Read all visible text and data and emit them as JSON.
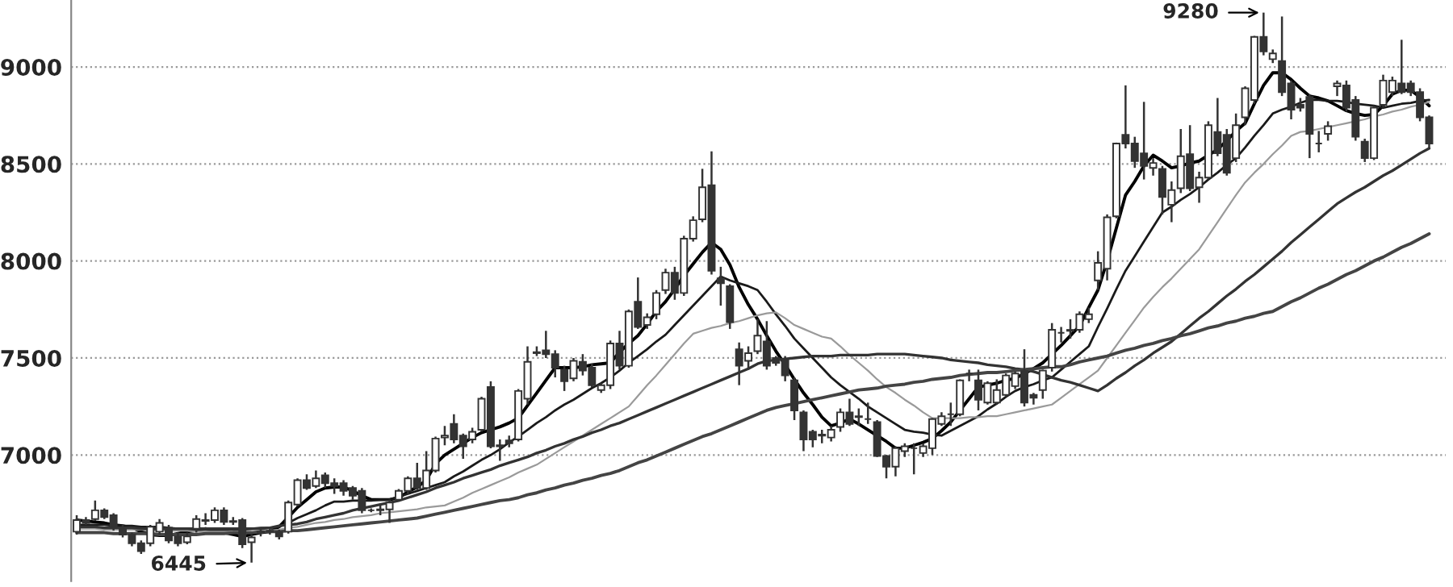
{
  "chart_data": {
    "type": "candlestick",
    "categories": [
      null,
      null,
      null,
      null,
      null,
      null,
      null,
      null,
      null,
      null,
      null,
      null,
      null,
      null,
      null,
      null,
      null,
      null,
      null,
      null,
      null,
      null,
      null,
      null,
      null,
      null,
      null,
      null,
      null,
      null,
      null,
      null,
      null,
      null,
      null,
      null,
      null,
      null,
      null,
      null,
      null,
      null,
      null,
      null,
      null,
      null,
      null,
      null,
      null,
      null,
      null,
      null,
      null,
      null,
      null,
      null,
      null,
      null,
      null,
      null,
      null,
      null,
      null,
      null,
      null,
      null,
      null,
      null,
      null,
      null,
      null,
      null,
      null,
      null,
      null,
      null,
      null,
      null,
      null,
      null,
      null,
      null,
      null,
      null,
      null,
      null,
      null,
      null,
      null,
      null,
      null,
      null,
      null,
      null,
      null,
      null,
      null,
      null,
      null,
      null,
      null,
      null,
      null,
      null,
      null,
      null,
      null,
      null,
      null,
      null,
      null,
      null,
      null,
      null,
      null,
      null,
      null,
      null,
      null,
      null,
      null,
      null,
      null,
      null,
      null,
      null,
      null,
      null,
      null,
      null,
      null,
      null,
      null,
      null,
      null,
      null,
      null,
      null,
      null,
      null,
      null,
      null,
      null,
      null,
      null,
      null,
      null,
      null
    ],
    "ohlc": [
      [
        6605,
        6690,
        6590,
        6665
      ],
      [
        6665,
        6680,
        6640,
        6650
      ],
      [
        6670,
        6765,
        6660,
        6715
      ],
      [
        6715,
        6725,
        6670,
        6680
      ],
      [
        6690,
        6700,
        6610,
        6625
      ],
      [
        6625,
        6640,
        6575,
        6590
      ],
      [
        6590,
        6600,
        6530,
        6545
      ],
      [
        6545,
        6560,
        6490,
        6505
      ],
      [
        6545,
        6640,
        6530,
        6630
      ],
      [
        6605,
        6670,
        6590,
        6650
      ],
      [
        6625,
        6640,
        6545,
        6560
      ],
      [
        6580,
        6600,
        6530,
        6545
      ],
      [
        6550,
        6600,
        6540,
        6580
      ],
      [
        6620,
        6690,
        6600,
        6670
      ],
      [
        6660,
        6700,
        6640,
        6665
      ],
      [
        6665,
        6730,
        6650,
        6715
      ],
      [
        6715,
        6730,
        6640,
        6655
      ],
      [
        6660,
        6680,
        6640,
        6655
      ],
      [
        6665,
        6675,
        6520,
        6540
      ],
      [
        6550,
        6590,
        6445,
        6575
      ],
      [
        6600,
        6620,
        6580,
        6605
      ],
      [
        6605,
        6625,
        6590,
        6610
      ],
      [
        6605,
        6615,
        6565,
        6580
      ],
      [
        6605,
        6765,
        6595,
        6755
      ],
      [
        6745,
        6880,
        6735,
        6870
      ],
      [
        6870,
        6900,
        6820,
        6830
      ],
      [
        6840,
        6920,
        6830,
        6880
      ],
      [
        6895,
        6910,
        6830,
        6855
      ],
      [
        6855,
        6880,
        6800,
        6840
      ],
      [
        6855,
        6870,
        6790,
        6815
      ],
      [
        6830,
        6840,
        6770,
        6790
      ],
      [
        6815,
        6830,
        6700,
        6715
      ],
      [
        6715,
        6725,
        6705,
        6715
      ],
      [
        6715,
        6740,
        6690,
        6720
      ],
      [
        6720,
        6770,
        6650,
        6755
      ],
      [
        6770,
        6825,
        6760,
        6815
      ],
      [
        6815,
        6890,
        6800,
        6880
      ],
      [
        6880,
        6960,
        6820,
        6830
      ],
      [
        6830,
        7020,
        6820,
        6920
      ],
      [
        6920,
        7095,
        6910,
        7085
      ],
      [
        7090,
        7150,
        7050,
        7100
      ],
      [
        7160,
        7210,
        7060,
        7080
      ],
      [
        7100,
        7110,
        6980,
        7045
      ],
      [
        7080,
        7140,
        7060,
        7120
      ],
      [
        7130,
        7300,
        7120,
        7290
      ],
      [
        7350,
        7380,
        7035,
        7045
      ],
      [
        7050,
        7080,
        6970,
        7045
      ],
      [
        7075,
        7100,
        7040,
        7060
      ],
      [
        7080,
        7340,
        7070,
        7330
      ],
      [
        7290,
        7560,
        7260,
        7480
      ],
      [
        7525,
        7560,
        7510,
        7530
      ],
      [
        7540,
        7640,
        7500,
        7520
      ],
      [
        7520,
        7540,
        7400,
        7450
      ],
      [
        7440,
        7460,
        7330,
        7380
      ],
      [
        7395,
        7500,
        7380,
        7485
      ],
      [
        7480,
        7520,
        7410,
        7435
      ],
      [
        7450,
        7470,
        7350,
        7360
      ],
      [
        7335,
        7370,
        7320,
        7360
      ],
      [
        7360,
        7590,
        7340,
        7575
      ],
      [
        7575,
        7640,
        7440,
        7460
      ],
      [
        7460,
        7750,
        7450,
        7740
      ],
      [
        7790,
        7915,
        7650,
        7660
      ],
      [
        7670,
        7730,
        7650,
        7710
      ],
      [
        7725,
        7850,
        7700,
        7835
      ],
      [
        7850,
        7960,
        7830,
        7940
      ],
      [
        7940,
        7970,
        7800,
        7835
      ],
      [
        7835,
        8130,
        7820,
        8115
      ],
      [
        8115,
        8230,
        8100,
        8210
      ],
      [
        8215,
        8475,
        8200,
        8380
      ],
      [
        8390,
        8565,
        7930,
        7950
      ],
      [
        7910,
        7970,
        7770,
        7885
      ],
      [
        7870,
        7880,
        7650,
        7685
      ],
      [
        7545,
        7580,
        7360,
        7460
      ],
      [
        7485,
        7560,
        7440,
        7525
      ],
      [
        7535,
        7700,
        7520,
        7615
      ],
      [
        7585,
        7690,
        7440,
        7460
      ],
      [
        7500,
        7510,
        7460,
        7475
      ],
      [
        7495,
        7510,
        7380,
        7410
      ],
      [
        7385,
        7400,
        7180,
        7230
      ],
      [
        7220,
        7230,
        7020,
        7080
      ],
      [
        7120,
        7130,
        7040,
        7080
      ],
      [
        7100,
        7130,
        7060,
        7105
      ],
      [
        7090,
        7150,
        7070,
        7130
      ],
      [
        7145,
        7240,
        7120,
        7220
      ],
      [
        7220,
        7290,
        7150,
        7160
      ],
      [
        7195,
        7240,
        7150,
        7200
      ],
      [
        7185,
        7270,
        7160,
        7185
      ],
      [
        7170,
        7180,
        6990,
        6995
      ],
      [
        6995,
        7000,
        6880,
        6940
      ],
      [
        6940,
        7045,
        6890,
        7035
      ],
      [
        7020,
        7060,
        6990,
        7045
      ],
      [
        7035,
        7060,
        6900,
        7035
      ],
      [
        7010,
        7060,
        6990,
        7045
      ],
      [
        7035,
        7190,
        7000,
        7185
      ],
      [
        7160,
        7220,
        7150,
        7200
      ],
      [
        7210,
        7270,
        7150,
        7210
      ],
      [
        7210,
        7390,
        7200,
        7385
      ],
      [
        7420,
        7440,
        7380,
        7420
      ],
      [
        7385,
        7440,
        7230,
        7285
      ],
      [
        7270,
        7380,
        7260,
        7370
      ],
      [
        7270,
        7390,
        7260,
        7335
      ],
      [
        7310,
        7420,
        7300,
        7410
      ],
      [
        7355,
        7430,
        7340,
        7420
      ],
      [
        7435,
        7545,
        7250,
        7270
      ],
      [
        7310,
        7320,
        7260,
        7295
      ],
      [
        7335,
        7440,
        7290,
        7435
      ],
      [
        7450,
        7680,
        7430,
        7645
      ],
      [
        7630,
        7660,
        7580,
        7630
      ],
      [
        7640,
        7700,
        7600,
        7645
      ],
      [
        7645,
        7740,
        7630,
        7725
      ],
      [
        7700,
        7760,
        7680,
        7725
      ],
      [
        7900,
        8050,
        7850,
        7990
      ],
      [
        7960,
        8240,
        7900,
        8225
      ],
      [
        8230,
        8610,
        8220,
        8605
      ],
      [
        8650,
        8905,
        8580,
        8605
      ],
      [
        8605,
        8640,
        8480,
        8515
      ],
      [
        8555,
        8820,
        8420,
        8490
      ],
      [
        8480,
        8530,
        8440,
        8505
      ],
      [
        8475,
        8490,
        8240,
        8330
      ],
      [
        8290,
        8410,
        8200,
        8365
      ],
      [
        8375,
        8680,
        8350,
        8540
      ],
      [
        8550,
        8700,
        8360,
        8375
      ],
      [
        8380,
        8460,
        8300,
        8430
      ],
      [
        8430,
        8720,
        8420,
        8700
      ],
      [
        8665,
        8840,
        8540,
        8555
      ],
      [
        8650,
        8680,
        8440,
        8455
      ],
      [
        8530,
        8760,
        8510,
        8700
      ],
      [
        8740,
        8900,
        8700,
        8890
      ],
      [
        8830,
        9160,
        8810,
        9155
      ],
      [
        9155,
        9280,
        9060,
        9080
      ],
      [
        9040,
        9090,
        9020,
        9070
      ],
      [
        9030,
        9260,
        8850,
        8870
      ],
      [
        8915,
        8930,
        8730,
        8780
      ],
      [
        8805,
        8840,
        8770,
        8790
      ],
      [
        8845,
        8860,
        8530,
        8655
      ],
      [
        8605,
        8670,
        8560,
        8605
      ],
      [
        8655,
        8720,
        8620,
        8695
      ],
      [
        8900,
        8930,
        8850,
        8915
      ],
      [
        8905,
        8930,
        8770,
        8790
      ],
      [
        8830,
        8850,
        8620,
        8640
      ],
      [
        8615,
        8630,
        8510,
        8530
      ],
      [
        8530,
        8800,
        8520,
        8790
      ],
      [
        8805,
        8960,
        8790,
        8930
      ],
      [
        8870,
        8950,
        8850,
        8930
      ],
      [
        8915,
        9140,
        8860,
        8870
      ],
      [
        8915,
        8930,
        8850,
        8870
      ],
      [
        8870,
        8890,
        8720,
        8740
      ],
      [
        8740,
        8750,
        8580,
        8605
      ]
    ],
    "colors": [
      "#ffffff",
      "#333333",
      "#ffffff",
      "#333333",
      "#333333",
      "#333333",
      "#333333",
      "#333333",
      "#ffffff",
      "#ffffff",
      "#333333",
      "#333333",
      "#ffffff",
      "#ffffff",
      "#ffffff",
      "#ffffff",
      "#333333",
      "#333333",
      "#333333",
      "#ffffff",
      "#ffffff",
      "#ffffff",
      "#333333",
      "#ffffff",
      "#ffffff",
      "#333333",
      "#ffffff",
      "#333333",
      "#333333",
      "#333333",
      "#333333",
      "#333333",
      "#333333",
      "#ffffff",
      "#ffffff",
      "#ffffff",
      "#ffffff",
      "#333333",
      "#ffffff",
      "#ffffff",
      "#ffffff",
      "#333333",
      "#333333",
      "#ffffff",
      "#ffffff",
      "#333333",
      "#333333",
      "#333333",
      "#ffffff",
      "#ffffff",
      "#ffffff",
      "#333333",
      "#333333",
      "#333333",
      "#ffffff",
      "#333333",
      "#333333",
      "#ffffff",
      "#ffffff",
      "#333333",
      "#ffffff",
      "#333333",
      "#ffffff",
      "#ffffff",
      "#ffffff",
      "#333333",
      "#ffffff",
      "#ffffff",
      "#ffffff",
      "#333333",
      "#333333",
      "#333333",
      "#333333",
      "#ffffff",
      "#ffffff",
      "#333333",
      "#333333",
      "#333333",
      "#333333",
      "#333333",
      "#333333",
      "#ffffff",
      "#ffffff",
      "#ffffff",
      "#333333",
      "#ffffff",
      "#333333",
      "#333333",
      "#333333",
      "#ffffff",
      "#ffffff",
      "#333333",
      "#ffffff",
      "#ffffff",
      "#ffffff",
      "#333333",
      "#ffffff",
      "#333333",
      "#333333",
      "#ffffff",
      "#ffffff",
      "#ffffff",
      "#ffffff",
      "#333333",
      "#333333",
      "#ffffff",
      "#ffffff",
      "#333333",
      "#ffffff",
      "#ffffff",
      "#ffffff",
      "#ffffff",
      "#ffffff",
      "#ffffff",
      "#333333",
      "#333333",
      "#333333",
      "#ffffff",
      "#333333",
      "#ffffff",
      "#ffffff",
      "#333333",
      "#ffffff",
      "#ffffff",
      "#333333",
      "#333333",
      "#ffffff",
      "#ffffff",
      "#ffffff",
      "#333333",
      "#ffffff",
      "#333333",
      "#333333",
      "#333333",
      "#333333",
      "#333333",
      "#ffffff",
      "#ffffff",
      "#333333",
      "#333333",
      "#333333",
      "#ffffff",
      "#ffffff",
      "#ffffff",
      "#333333",
      "#333333",
      "#333333",
      "#333333"
    ],
    "series": [
      {
        "type": "line",
        "color": "#000000",
        "values": [
          6665,
          6660,
          6655,
          6650,
          6640,
          6635,
          6625,
          6605,
          6590,
          6585,
          6585,
          6595,
          6605,
          6610,
          6620,
          6610,
          6600,
          6590,
          6580,
          6590,
          6600,
          6605,
          6630,
          6680,
          6730,
          6770,
          6810,
          6830,
          6835,
          6835,
          6815,
          6790,
          6770,
          6770,
          6770,
          6780,
          6810,
          6835,
          6870,
          6955,
          7000,
          7030,
          7060,
          7090,
          7115,
          7130,
          7145,
          7165,
          7190,
          7255,
          7320,
          7385,
          7450,
          7450,
          7450,
          7455,
          7465,
          7470,
          7475,
          7530,
          7575,
          7615,
          7675,
          7740,
          7790,
          7855,
          7925,
          7985,
          8045,
          8095,
          8060,
          7980,
          7865,
          7775,
          7700,
          7615,
          7535,
          7465,
          7390,
          7320,
          7260,
          7195,
          7150,
          7165,
          7185,
          7160,
          7130,
          7100,
          7070,
          7035,
          7035,
          7050,
          7065,
          7085,
          7125,
          7170,
          7230,
          7290,
          7350,
          7360,
          7370,
          7385,
          7395,
          7420,
          7445,
          7475,
          7520,
          7565,
          7615,
          7665,
          7760,
          7850,
          8000,
          8170,
          8340,
          8410,
          8490,
          8545,
          8515,
          8480,
          8490,
          8505,
          8515,
          8545,
          8575,
          8620,
          8670,
          8710,
          8810,
          8905,
          8970,
          8970,
          8935,
          8890,
          8850,
          8840,
          8825,
          8800,
          8775,
          8760,
          8750,
          8755,
          8800,
          8860,
          8880,
          8880,
          8845,
          8800
        ]
      },
      {
        "type": "line",
        "color": "#1a1a1a",
        "values": [
          6640,
          6640,
          6640,
          6640,
          6635,
          6635,
          6635,
          6630,
          6630,
          6630,
          6625,
          6620,
          6620,
          6615,
          6615,
          6610,
          6610,
          6615,
          6615,
          6620,
          6625,
          6625,
          6630,
          6650,
          6675,
          6695,
          6715,
          6740,
          6760,
          6760,
          6765,
          6765,
          6765,
          6770,
          6770,
          6785,
          6800,
          6815,
          6830,
          6845,
          6860,
          6890,
          6915,
          6945,
          6975,
          7000,
          7030,
          7065,
          7095,
          7130,
          7165,
          7195,
          7230,
          7260,
          7285,
          7315,
          7345,
          7370,
          7400,
          7435,
          7475,
          7510,
          7545,
          7585,
          7620,
          7670,
          7720,
          7770,
          7820,
          7870,
          7920,
          7900,
          7885,
          7870,
          7850,
          7790,
          7725,
          7665,
          7600,
          7550,
          7500,
          7450,
          7400,
          7360,
          7325,
          7290,
          7250,
          7220,
          7190,
          7160,
          7130,
          7120,
          7115,
          7105,
          7100,
          7125,
          7150,
          7175,
          7200,
          7235,
          7265,
          7300,
          7330,
          7350,
          7365,
          7385,
          7400,
          7440,
          7480,
          7520,
          7560,
          7660,
          7755,
          7855,
          7950,
          8025,
          8100,
          8175,
          8250,
          8280,
          8315,
          8345,
          8380,
          8420,
          8455,
          8495,
          8530,
          8585,
          8645,
          8700,
          8760,
          8780,
          8795,
          8815,
          8830,
          8830,
          8825,
          8825,
          8820,
          8810,
          8805,
          8800,
          8790,
          8800,
          8810,
          8815,
          8825,
          8830
        ]
      },
      {
        "type": "line",
        "color": "#9a9a9a",
        "values": [
          6620,
          6620,
          6620,
          6615,
          6615,
          6615,
          6615,
          6615,
          6610,
          6610,
          6610,
          6610,
          6610,
          6605,
          6605,
          6605,
          6605,
          6605,
          6600,
          6600,
          6600,
          6610,
          6615,
          6625,
          6630,
          6640,
          6650,
          6655,
          6665,
          6670,
          6680,
          6685,
          6690,
          6700,
          6705,
          6710,
          6715,
          6720,
          6730,
          6735,
          6740,
          6760,
          6780,
          6805,
          6825,
          6845,
          6865,
          6885,
          6910,
          6930,
          6950,
          6980,
          7010,
          7040,
          7070,
          7100,
          7130,
          7160,
          7190,
          7220,
          7250,
          7305,
          7360,
          7410,
          7465,
          7520,
          7575,
          7625,
          7640,
          7655,
          7665,
          7680,
          7690,
          7705,
          7720,
          7730,
          7735,
          7705,
          7670,
          7650,
          7630,
          7610,
          7600,
          7560,
          7515,
          7475,
          7435,
          7390,
          7350,
          7320,
          7285,
          7255,
          7220,
          7190,
          7190,
          7190,
          7190,
          7195,
          7195,
          7200,
          7200,
          7210,
          7220,
          7230,
          7240,
          7250,
          7260,
          7295,
          7330,
          7365,
          7400,
          7435,
          7500,
          7565,
          7630,
          7695,
          7760,
          7815,
          7865,
          7910,
          7960,
          8010,
          8060,
          8130,
          8200,
          8270,
          8340,
          8405,
          8455,
          8500,
          8550,
          8595,
          8645,
          8665,
          8670,
          8680,
          8690,
          8700,
          8710,
          8720,
          8730,
          8745,
          8755,
          8770,
          8780,
          8795,
          8805,
          8820
        ]
      },
      {
        "type": "line",
        "color": "#333333",
        "values": [
          6630,
          6630,
          6630,
          6625,
          6625,
          6625,
          6625,
          6620,
          6620,
          6620,
          6620,
          6620,
          6620,
          6620,
          6620,
          6620,
          6620,
          6620,
          6620,
          6620,
          6620,
          6625,
          6635,
          6640,
          6645,
          6655,
          6670,
          6680,
          6690,
          6700,
          6715,
          6725,
          6735,
          6745,
          6755,
          6765,
          6780,
          6795,
          6810,
          6830,
          6845,
          6860,
          6880,
          6895,
          6910,
          6925,
          6945,
          6960,
          6975,
          6990,
          7010,
          7025,
          7045,
          7060,
          7080,
          7095,
          7115,
          7130,
          7150,
          7165,
          7185,
          7205,
          7225,
          7245,
          7265,
          7285,
          7305,
          7325,
          7345,
          7365,
          7385,
          7405,
          7425,
          7445,
          7470,
          7485,
          7490,
          7495,
          7500,
          7505,
          7510,
          7510,
          7510,
          7515,
          7515,
          7515,
          7515,
          7520,
          7520,
          7520,
          7520,
          7515,
          7510,
          7505,
          7500,
          7490,
          7485,
          7480,
          7475,
          7465,
          7460,
          7455,
          7445,
          7440,
          7430,
          7415,
          7400,
          7385,
          7375,
          7360,
          7345,
          7330,
          7360,
          7395,
          7425,
          7460,
          7490,
          7525,
          7555,
          7585,
          7625,
          7665,
          7705,
          7740,
          7780,
          7820,
          7855,
          7895,
          7930,
          7970,
          8010,
          8050,
          8095,
          8135,
          8175,
          8215,
          8255,
          8295,
          8325,
          8355,
          8380,
          8410,
          8440,
          8465,
          8495,
          8525,
          8555,
          8580
        ]
      },
      {
        "type": "line",
        "color": "#444444",
        "values": [
          6600,
          6600,
          6600,
          6600,
          6595,
          6595,
          6595,
          6595,
          6595,
          6590,
          6590,
          6590,
          6590,
          6590,
          6595,
          6595,
          6595,
          6600,
          6600,
          6600,
          6605,
          6605,
          6605,
          6610,
          6610,
          6615,
          6620,
          6625,
          6630,
          6635,
          6640,
          6645,
          6650,
          6655,
          6660,
          6665,
          6670,
          6675,
          6685,
          6695,
          6705,
          6715,
          6725,
          6735,
          6745,
          6755,
          6765,
          6770,
          6780,
          6795,
          6805,
          6820,
          6830,
          6845,
          6855,
          6870,
          6880,
          6895,
          6905,
          6920,
          6940,
          6960,
          6975,
          6995,
          7015,
          7035,
          7055,
          7075,
          7095,
          7110,
          7130,
          7150,
          7170,
          7190,
          7210,
          7230,
          7245,
          7255,
          7265,
          7275,
          7285,
          7295,
          7305,
          7315,
          7325,
          7335,
          7340,
          7345,
          7355,
          7360,
          7365,
          7375,
          7380,
          7390,
          7395,
          7400,
          7410,
          7415,
          7420,
          7425,
          7425,
          7430,
          7435,
          7440,
          7445,
          7450,
          7455,
          7455,
          7465,
          7480,
          7490,
          7500,
          7510,
          7525,
          7540,
          7550,
          7565,
          7575,
          7590,
          7600,
          7615,
          7625,
          7640,
          7655,
          7665,
          7680,
          7690,
          7705,
          7715,
          7730,
          7740,
          7765,
          7790,
          7810,
          7835,
          7860,
          7880,
          7905,
          7930,
          7950,
          7975,
          8000,
          8020,
          8045,
          8070,
          8090,
          8115,
          8140
        ]
      }
    ],
    "annotations": [
      "9280",
      "6445"
    ],
    "ylim": [
      6350,
      9345
    ],
    "yticks": [
      7000,
      7500,
      8000,
      8500,
      9000
    ],
    "grid": "y",
    "tick_labels": "y"
  }
}
